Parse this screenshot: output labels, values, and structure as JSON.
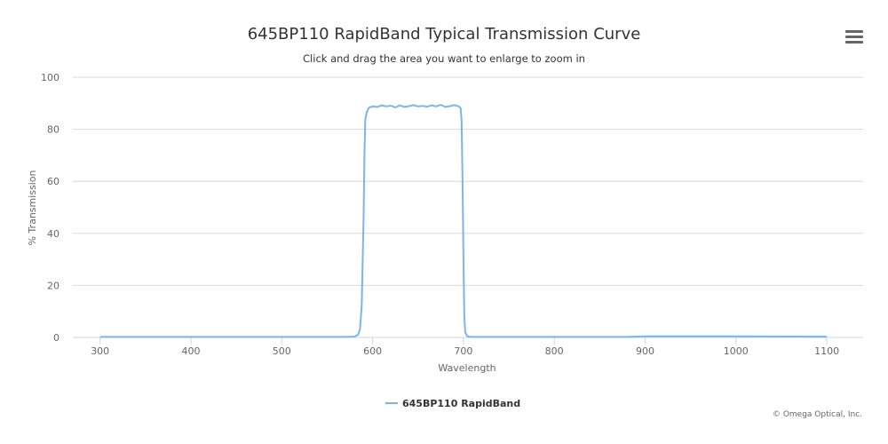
{
  "header": {
    "title": "645BP110 RapidBand Typical Transmission Curve",
    "subtitle": "Click and drag the area you want to enlarge to zoom in",
    "menu_icon": "hamburger-menu-icon"
  },
  "credits": "© Omega Optical, Inc.",
  "colors": {
    "series": "#7cb5ec",
    "grid": "#d8d8d8",
    "axis": "#ccd6eb"
  },
  "chart_data": {
    "type": "line",
    "title": "645BP110 RapidBand Typical Transmission Curve",
    "subtitle": "Click and drag the area you want to enlarge to zoom in",
    "xlabel": "Wavelength",
    "ylabel": "% Transmission",
    "xlim": [
      270,
      1140
    ],
    "ylim": [
      0,
      100
    ],
    "xticks": [
      300,
      400,
      500,
      600,
      700,
      800,
      900,
      1000,
      1100
    ],
    "yticks": [
      0,
      20,
      40,
      60,
      80,
      100
    ],
    "grid": true,
    "legend_position": "bottom-center",
    "series": [
      {
        "name": "645BP110 RapidBand",
        "color": "#7cb5ec",
        "x": [
          300,
          400,
          500,
          570,
          580,
          584,
          586,
          588,
          590,
          591,
          592,
          594,
          596,
          600,
          605,
          610,
          615,
          620,
          625,
          630,
          635,
          640,
          645,
          650,
          655,
          660,
          665,
          670,
          675,
          680,
          685,
          690,
          695,
          697,
          698,
          699,
          700,
          701,
          702,
          704,
          706,
          710,
          720,
          800,
          880,
          900,
          1000,
          1100
        ],
        "y": [
          0.2,
          0.2,
          0.2,
          0.2,
          0.3,
          1,
          3,
          12,
          45,
          70,
          84,
          87,
          88.3,
          88.8,
          88.6,
          89.2,
          88.8,
          89.1,
          88.4,
          89.2,
          88.6,
          88.9,
          89.3,
          88.8,
          89.0,
          88.7,
          89.2,
          88.8,
          89.4,
          88.6,
          88.9,
          89.3,
          88.8,
          88.0,
          83,
          60,
          30,
          8,
          2,
          0.6,
          0.3,
          0.2,
          0.2,
          0.2,
          0.2,
          0.4,
          0.4,
          0.3
        ]
      }
    ]
  }
}
